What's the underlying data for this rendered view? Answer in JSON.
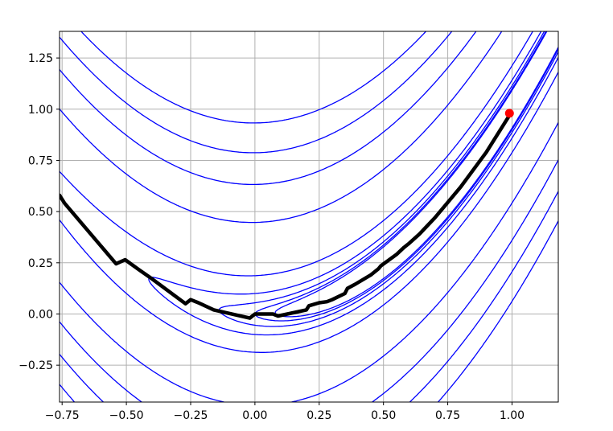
{
  "chart_data": {
    "type": "contour",
    "title": "",
    "xlabel": "",
    "ylabel": "",
    "xlim": [
      -0.76,
      1.18
    ],
    "ylim": [
      -0.43,
      1.38
    ],
    "grid": true,
    "x_ticks": [
      {
        "value": -0.75,
        "label": "−0.75"
      },
      {
        "value": -0.5,
        "label": "−0.50"
      },
      {
        "value": -0.25,
        "label": "−0.25"
      },
      {
        "value": 0.0,
        "label": "0.00"
      },
      {
        "value": 0.25,
        "label": "0.25"
      },
      {
        "value": 0.5,
        "label": "0.50"
      },
      {
        "value": 0.75,
        "label": "0.75"
      },
      {
        "value": 1.0,
        "label": "1.00"
      }
    ],
    "y_ticks": [
      {
        "value": -0.25,
        "label": "−0.25"
      },
      {
        "value": 0.0,
        "label": "0.00"
      },
      {
        "value": 0.25,
        "label": "0.25"
      },
      {
        "value": 0.5,
        "label": "0.50"
      },
      {
        "value": 0.75,
        "label": "0.75"
      },
      {
        "value": 1.0,
        "label": "1.00"
      },
      {
        "value": 1.25,
        "label": "1.25"
      }
    ],
    "contour_function": "rosenbrock (1-x)^2 + 100(y-x^2)^2",
    "contour_levels": [
      0.85,
      1.0,
      1.3,
      2.0,
      4.5,
      21,
      41,
      63,
      88
    ],
    "contour_color": "#0000ff",
    "path_color": "#000000",
    "path": [
      {
        "x": -0.76,
        "y": 0.58
      },
      {
        "x": -0.74,
        "y": 0.54
      },
      {
        "x": -0.54,
        "y": 0.245
      },
      {
        "x": -0.505,
        "y": 0.265
      },
      {
        "x": -0.45,
        "y": 0.215
      },
      {
        "x": -0.41,
        "y": 0.18
      },
      {
        "x": -0.27,
        "y": 0.05
      },
      {
        "x": -0.25,
        "y": 0.07
      },
      {
        "x": -0.22,
        "y": 0.055
      },
      {
        "x": -0.16,
        "y": 0.02
      },
      {
        "x": -0.02,
        "y": -0.02
      },
      {
        "x": 0.0,
        "y": 0.0
      },
      {
        "x": 0.07,
        "y": 0.0
      },
      {
        "x": 0.09,
        "y": -0.01
      },
      {
        "x": 0.2,
        "y": 0.02
      },
      {
        "x": 0.21,
        "y": 0.04
      },
      {
        "x": 0.25,
        "y": 0.055
      },
      {
        "x": 0.28,
        "y": 0.06
      },
      {
        "x": 0.3,
        "y": 0.07
      },
      {
        "x": 0.35,
        "y": 0.1
      },
      {
        "x": 0.36,
        "y": 0.125
      },
      {
        "x": 0.39,
        "y": 0.145
      },
      {
        "x": 0.45,
        "y": 0.19
      },
      {
        "x": 0.48,
        "y": 0.22
      },
      {
        "x": 0.49,
        "y": 0.235
      },
      {
        "x": 0.55,
        "y": 0.29
      },
      {
        "x": 0.58,
        "y": 0.325
      },
      {
        "x": 0.6,
        "y": 0.345
      },
      {
        "x": 0.64,
        "y": 0.39
      },
      {
        "x": 0.7,
        "y": 0.47
      },
      {
        "x": 0.75,
        "y": 0.545
      },
      {
        "x": 0.8,
        "y": 0.62
      },
      {
        "x": 0.9,
        "y": 0.79
      },
      {
        "x": 0.99,
        "y": 0.97
      }
    ],
    "end_point": {
      "x": 0.99,
      "y": 0.98,
      "color": "#ff0000"
    }
  }
}
